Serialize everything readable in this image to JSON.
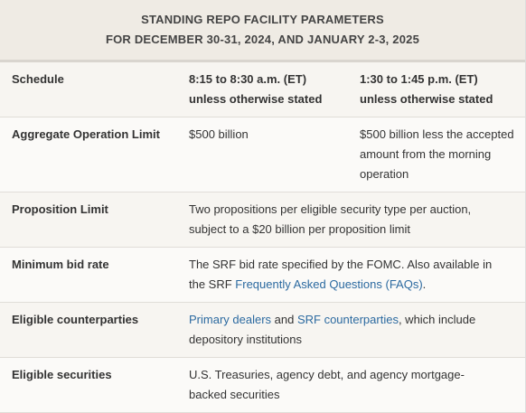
{
  "header": {
    "title_lines": [
      "STANDING REPO FACILITY PARAMETERS",
      "FOR DECEMBER 30-31, 2024, AND JANUARY 2-3, 2025"
    ]
  },
  "table": {
    "rows": [
      {
        "label": "Schedule",
        "cells": [
          [
            {
              "text": "8:15 to 8:30 a.m. (ET)",
              "style": "bold"
            },
            {
              "text": "unless otherwise stated",
              "style": "bold"
            }
          ],
          [
            {
              "text": "1:30 to 1:45 p.m. (ET)",
              "style": "bold"
            },
            {
              "text": "unless otherwise stated",
              "style": "bold"
            }
          ]
        ]
      },
      {
        "label": "Aggregate Operation Limit",
        "cells": [
          [
            {
              "text": "$500 billion"
            }
          ],
          [
            {
              "text": "$500 billion less the accepted amount from the morning operation"
            }
          ]
        ]
      },
      {
        "label": "Proposition Limit",
        "cells": [
          [
            {
              "text": "Two propositions per eligible security type per auction, subject to a $20 billion per proposition limit"
            }
          ]
        ]
      },
      {
        "label": "Minimum bid rate",
        "cells": [
          [
            {
              "text": "The SRF bid rate specified by the FOMC. Also available in the SRF "
            },
            {
              "text": "Frequently Asked Questions (FAQs)",
              "style": "link"
            },
            {
              "text": "."
            }
          ]
        ]
      },
      {
        "label": "Eligible counterparties",
        "cells": [
          [
            {
              "text": "Primary dealers",
              "style": "link"
            },
            {
              "text": " and "
            },
            {
              "text": "SRF counterparties",
              "style": "link"
            },
            {
              "text": ", which include depository institutions"
            }
          ]
        ]
      },
      {
        "label": "Eligible securities",
        "cells": [
          [
            {
              "text": "U.S. Treasuries, agency debt, and agency mortgage-backed securities"
            }
          ]
        ]
      }
    ]
  }
}
